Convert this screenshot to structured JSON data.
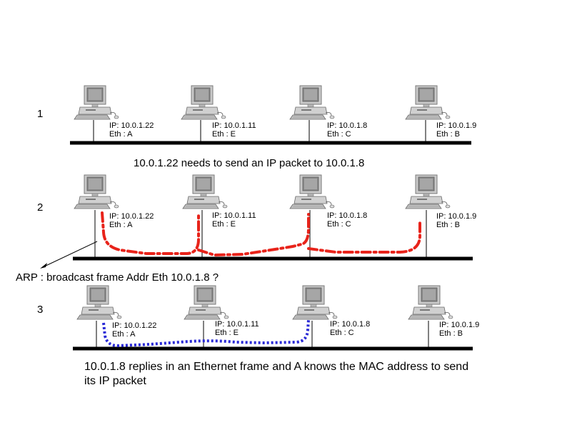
{
  "scenes": [
    {
      "number": "1",
      "hosts": [
        {
          "ip": "IP: 10.0.1.22",
          "eth": "Eth : A"
        },
        {
          "ip": "IP: 10.0.1.11",
          "eth": "Eth : E"
        },
        {
          "ip": "IP: 10.0.1.8",
          "eth": "Eth : C"
        },
        {
          "ip": "IP: 10.0.1.9",
          "eth": "Eth : B"
        }
      ]
    },
    {
      "number": "2",
      "hosts": [
        {
          "ip": "IP: 10.0.1.22",
          "eth": "Eth : A"
        },
        {
          "ip": "IP: 10.0.1.11",
          "eth": "Eth : E"
        },
        {
          "ip": "IP: 10.0.1.8",
          "eth": "Eth : C"
        },
        {
          "ip": "IP: 10.0.1.9",
          "eth": "Eth : B"
        }
      ]
    },
    {
      "number": "3",
      "hosts": [
        {
          "ip": "IP: 10.0.1.22",
          "eth": "Eth : A"
        },
        {
          "ip": "IP: 10.0.1.11",
          "eth": "Eth : E"
        },
        {
          "ip": "IP: 10.0.1.8",
          "eth": "Eth : C"
        },
        {
          "ip": "IP: 10.0.1.9",
          "eth": "Eth : B"
        }
      ]
    }
  ],
  "captions": {
    "step1": "10.0.1.22 needs to send an IP packet to  10.0.1.8",
    "arp": "ARP : broadcast frame Addr Eth 10.0.1.8 ?",
    "reply_line1": "10.0.1.8 replies in an Ethernet frame and A knows the MAC address to send",
    "reply_line2": "its IP packet"
  },
  "colors": {
    "broadcast": "#e8231a",
    "reply": "#2a2ad6",
    "bus": "#000000"
  },
  "icons": {
    "host": "desktop-computer-icon"
  }
}
